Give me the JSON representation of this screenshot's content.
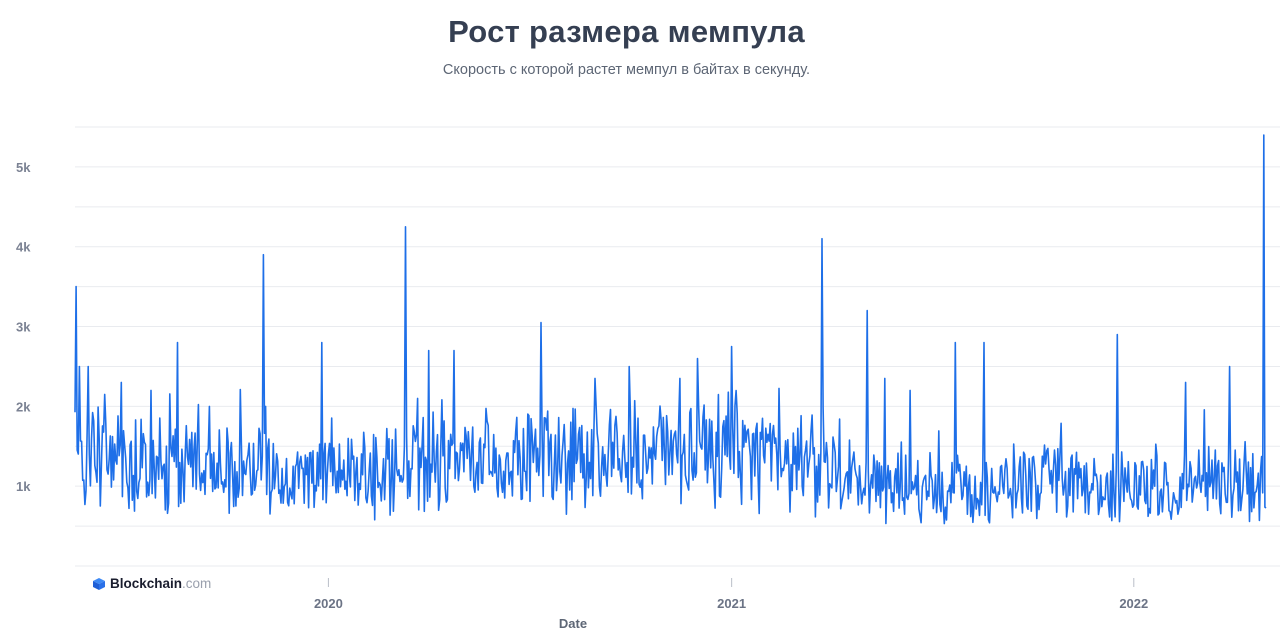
{
  "colors": {
    "line": "#1e6fe8",
    "grid": "#e9ebef",
    "text": "#353f52"
  },
  "brand": {
    "name": "Blockchain",
    "suffix": ".com",
    "icon": "blockchain-cube-icon"
  },
  "chart_data": {
    "type": "line",
    "title": "Рост размера мемпула",
    "subtitle": "Скорость с которой растет мемпул в байтах в секунду.",
    "xlabel": "Date",
    "ylabel": "",
    "x_start": "2019-05-16",
    "x_end": "2022-05-01",
    "x_ticks": [
      {
        "date": "2020-01-01",
        "label": "2020"
      },
      {
        "date": "2021-01-01",
        "label": "2021"
      },
      {
        "date": "2022-01-01",
        "label": "2022"
      }
    ],
    "y_ticks": [
      {
        "value": 1000,
        "label": "1k"
      },
      {
        "value": 2000,
        "label": "2k"
      },
      {
        "value": 3000,
        "label": "3k"
      },
      {
        "value": 4000,
        "label": "4k"
      },
      {
        "value": 5000,
        "label": "5k"
      }
    ],
    "ylim": [
      0,
      5500
    ],
    "grid": true,
    "series": [
      {
        "sampling": "daily",
        "baseline": [
          [
            "2019-05-16",
            1450
          ],
          [
            "2019-07-01",
            1300
          ],
          [
            "2019-09-01",
            1200
          ],
          [
            "2019-11-01",
            1150
          ],
          [
            "2020-01-01",
            1150
          ],
          [
            "2020-03-01",
            1200
          ],
          [
            "2020-05-01",
            1300
          ],
          [
            "2020-07-01",
            1350
          ],
          [
            "2020-09-01",
            1350
          ],
          [
            "2020-11-01",
            1400
          ],
          [
            "2021-01-01",
            1500
          ],
          [
            "2021-03-01",
            1350
          ],
          [
            "2021-05-01",
            1000
          ],
          [
            "2021-07-01",
            950
          ],
          [
            "2021-09-01",
            1000
          ],
          [
            "2021-11-01",
            1000
          ],
          [
            "2022-01-01",
            1000
          ],
          [
            "2022-03-01",
            1000
          ],
          [
            "2022-05-01",
            1000
          ]
        ],
        "spikes": [
          [
            "2019-05-17",
            3500
          ],
          [
            "2019-05-20",
            2500
          ],
          [
            "2019-05-28",
            2500
          ],
          [
            "2019-06-27",
            2300
          ],
          [
            "2019-07-24",
            2200
          ],
          [
            "2019-08-17",
            2800
          ],
          [
            "2019-09-15",
            2000
          ],
          [
            "2019-11-03",
            3900
          ],
          [
            "2019-11-05",
            2000
          ],
          [
            "2019-12-26",
            2800
          ],
          [
            "2020-03-11",
            4250
          ],
          [
            "2020-04-01",
            2700
          ],
          [
            "2020-04-24",
            2700
          ],
          [
            "2020-07-12",
            3050
          ],
          [
            "2020-08-30",
            2350
          ],
          [
            "2020-09-30",
            2500
          ],
          [
            "2020-11-15",
            2350
          ],
          [
            "2021-01-01",
            2750
          ],
          [
            "2021-03-24",
            4100
          ],
          [
            "2021-05-04",
            3200
          ],
          [
            "2021-05-20",
            2350
          ],
          [
            "2021-06-12",
            2200
          ],
          [
            "2021-07-23",
            2800
          ],
          [
            "2021-08-18",
            2800
          ],
          [
            "2021-12-17",
            2900
          ],
          [
            "2022-02-17",
            2300
          ],
          [
            "2022-03-29",
            2500
          ],
          [
            "2022-04-29",
            5400
          ]
        ],
        "min": 450,
        "max": 5400
      }
    ]
  }
}
